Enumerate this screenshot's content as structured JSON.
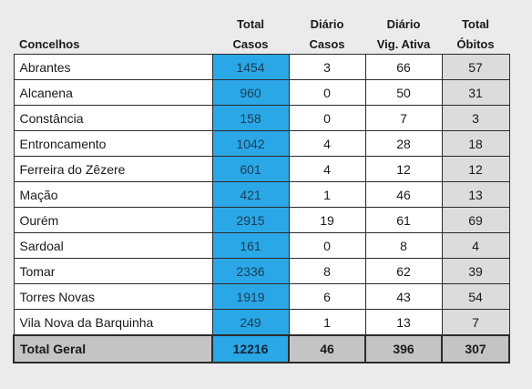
{
  "headers": {
    "concelhos": "Concelhos",
    "total_casos_line1": "Total",
    "total_casos_line2": "Casos",
    "diario_casos_line1": "Diário",
    "diario_casos_line2": "Casos",
    "diario_vig_line1": "Diário",
    "diario_vig_line2": "Vig. Ativa",
    "total_obitos_line1": "Total",
    "total_obitos_line2": "Óbitos"
  },
  "rows": [
    {
      "concelho": "Abrantes",
      "total_casos": "1454",
      "diario_casos": "3",
      "diario_vig": "66",
      "total_obitos": "57"
    },
    {
      "concelho": "Alcanena",
      "total_casos": "960",
      "diario_casos": "0",
      "diario_vig": "50",
      "total_obitos": "31"
    },
    {
      "concelho": "Constância",
      "total_casos": "158",
      "diario_casos": "0",
      "diario_vig": "7",
      "total_obitos": "3"
    },
    {
      "concelho": "Entroncamento",
      "total_casos": "1042",
      "diario_casos": "4",
      "diario_vig": "28",
      "total_obitos": "18"
    },
    {
      "concelho": "Ferreira do Zêzere",
      "total_casos": "601",
      "diario_casos": "4",
      "diario_vig": "12",
      "total_obitos": "12"
    },
    {
      "concelho": "Mação",
      "total_casos": "421",
      "diario_casos": "1",
      "diario_vig": "46",
      "total_obitos": "13"
    },
    {
      "concelho": "Ourém",
      "total_casos": "2915",
      "diario_casos": "19",
      "diario_vig": "61",
      "total_obitos": "69"
    },
    {
      "concelho": "Sardoal",
      "total_casos": "161",
      "diario_casos": "0",
      "diario_vig": "8",
      "total_obitos": "4"
    },
    {
      "concelho": "Tomar",
      "total_casos": "2336",
      "diario_casos": "8",
      "diario_vig": "62",
      "total_obitos": "39"
    },
    {
      "concelho": "Torres Novas",
      "total_casos": "1919",
      "diario_casos": "6",
      "diario_vig": "43",
      "total_obitos": "54"
    },
    {
      "concelho": "Vila Nova da Barquinha",
      "total_casos": "249",
      "diario_casos": "1",
      "diario_vig": "13",
      "total_obitos": "7"
    }
  ],
  "total": {
    "label": "Total Geral",
    "total_casos": "12216",
    "diario_casos": "46",
    "diario_vig": "396",
    "total_obitos": "307"
  },
  "colors": {
    "total_casos_fill": "#2aa7e6",
    "obitos_fill": "#dcdcdc",
    "footer_fill": "#c4c4c4",
    "background": "#ebebed"
  }
}
